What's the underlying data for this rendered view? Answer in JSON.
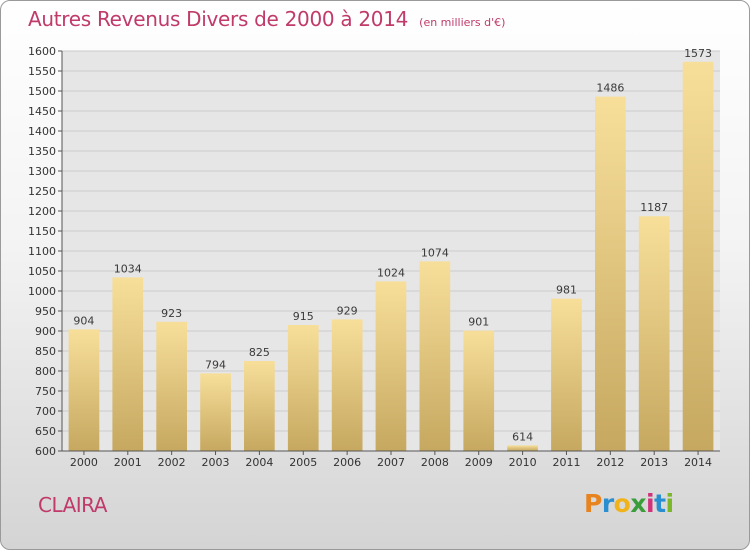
{
  "header": {
    "title": "Autres Revenus Divers de 2000 à 2014",
    "subtitle": "(en milliers d'€)"
  },
  "footer": {
    "town": "CLAIRA",
    "logo_letters": [
      "P",
      "r",
      "o",
      "x",
      "i",
      "t",
      "i"
    ],
    "logo_colors": [
      "#e8841f",
      "#2a8fd0",
      "#f0b31a",
      "#3a9d3a",
      "#d0337a",
      "#2a8fd0",
      "#7ab82a"
    ]
  },
  "colors": {
    "title": "#c03a6a",
    "bar_top": "#f7df9a",
    "bar_bottom": "#c6a860",
    "grid": "#cccccc",
    "plot_bg": "#e6e6e6"
  },
  "chart_data": {
    "type": "bar",
    "title": "Autres Revenus Divers de 2000 à 2014",
    "subtitle": "(en milliers d'€)",
    "xlabel": "",
    "ylabel": "",
    "categories": [
      "2000",
      "2001",
      "2002",
      "2003",
      "2004",
      "2005",
      "2006",
      "2007",
      "2008",
      "2009",
      "2010",
      "2011",
      "2012",
      "2013",
      "2014"
    ],
    "values": [
      904,
      1034,
      923,
      794,
      825,
      915,
      929,
      1024,
      1074,
      901,
      614,
      981,
      1486,
      1187,
      1573
    ],
    "ylim": [
      600,
      1600
    ],
    "ytick_step": 50,
    "grid": true,
    "legend": "none"
  }
}
